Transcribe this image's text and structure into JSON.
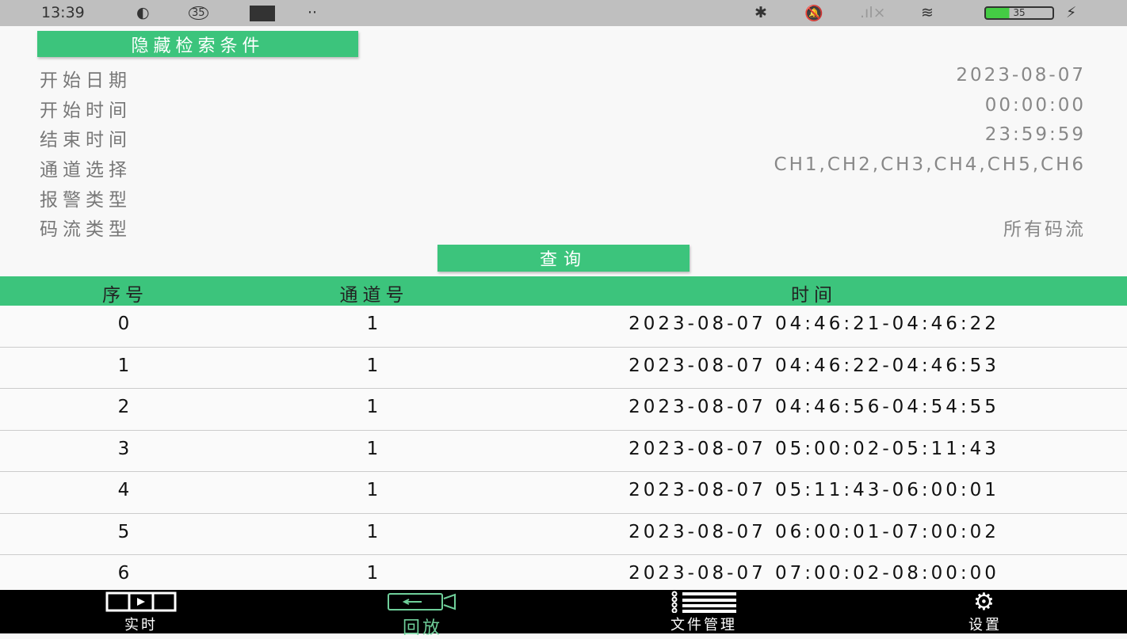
{
  "status_bar": {
    "time": "13:39",
    "notif_count": "35",
    "battery": "35"
  },
  "search": {
    "toggle_label": "隐藏检索条件",
    "fields": [
      {
        "label": "开始日期",
        "value": "2023-08-07"
      },
      {
        "label": "开始时间",
        "value": "00:00:00"
      },
      {
        "label": "结束时间",
        "value": "23:59:59"
      },
      {
        "label": "通道选择",
        "value": "CH1,CH2,CH3,CH4,CH5,CH6"
      },
      {
        "label": "报警类型",
        "value": ""
      },
      {
        "label": "码流类型",
        "value": "所有码流"
      }
    ],
    "query_label": "查询"
  },
  "table": {
    "headers": [
      "序号",
      "通道号",
      "时间"
    ],
    "rows": [
      [
        "0",
        "1",
        "2023-08-07 04:46:21-04:46:22"
      ],
      [
        "1",
        "1",
        "2023-08-07 04:46:22-04:46:53"
      ],
      [
        "2",
        "1",
        "2023-08-07 04:46:56-04:54:55"
      ],
      [
        "3",
        "1",
        "2023-08-07 05:00:02-05:11:43"
      ],
      [
        "4",
        "1",
        "2023-08-07 05:11:43-06:00:01"
      ],
      [
        "5",
        "1",
        "2023-08-07 06:00:01-07:00:02"
      ],
      [
        "6",
        "1",
        "2023-08-07 07:00:02-08:00:00"
      ]
    ]
  },
  "nav": {
    "items": [
      {
        "label": "实时",
        "icon": "film-icon"
      },
      {
        "label": "回放",
        "icon": "playback-camera-icon",
        "active": true
      },
      {
        "label": "文件管理",
        "icon": "list-icon"
      },
      {
        "label": "设置",
        "icon": "gear-icon"
      }
    ],
    "active_color": "#6fcf9a"
  },
  "colors": {
    "accent": "#3cc47c"
  }
}
